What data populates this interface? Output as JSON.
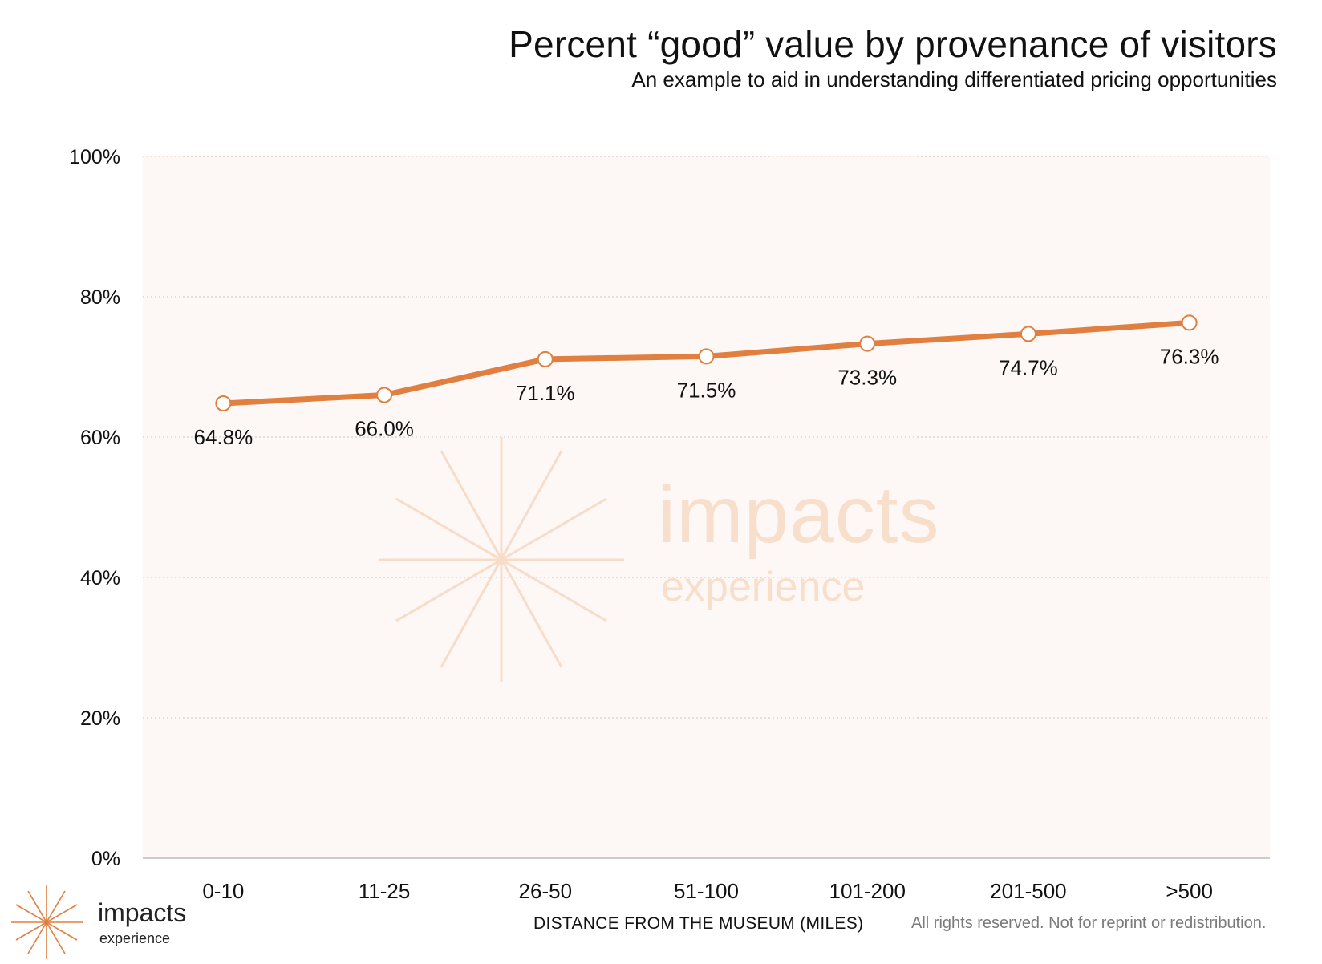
{
  "chart_data": {
    "type": "line",
    "title": "Percent “good” value by provenance of visitors",
    "subtitle": "An example to aid in understanding differentiated pricing opportunities",
    "xlabel": "DISTANCE FROM THE MUSEUM (MILES)",
    "ylabel": "",
    "categories": [
      "0-10",
      "11-25",
      "26-50",
      "51-100",
      "101-200",
      "201-500",
      ">500"
    ],
    "values": [
      64.8,
      66.0,
      71.1,
      71.5,
      73.3,
      74.7,
      76.3
    ],
    "data_labels": [
      "64.8%",
      "66.0%",
      "71.1%",
      "71.5%",
      "73.3%",
      "74.7%",
      "76.3%"
    ],
    "ylim": [
      0,
      100
    ],
    "yticks": [
      0,
      20,
      40,
      60,
      80,
      100
    ],
    "ytick_labels": [
      "0%",
      "20%",
      "40%",
      "60%",
      "80%",
      "100%"
    ],
    "grid": true,
    "legend": "none",
    "colors": {
      "line": "#e07f3f",
      "marker_fill": "#ffffff",
      "plot_bg": "#fdf8f6",
      "grid": "#c8c8c8"
    }
  },
  "footer": {
    "note": "All rights reserved. Not for reprint or redistribution."
  },
  "logo": {
    "word": "impacts",
    "sub": "experience",
    "icon": "starburst-icon"
  },
  "watermark": {
    "word": "impacts",
    "sub": "experience",
    "icon": "starburst-icon"
  }
}
